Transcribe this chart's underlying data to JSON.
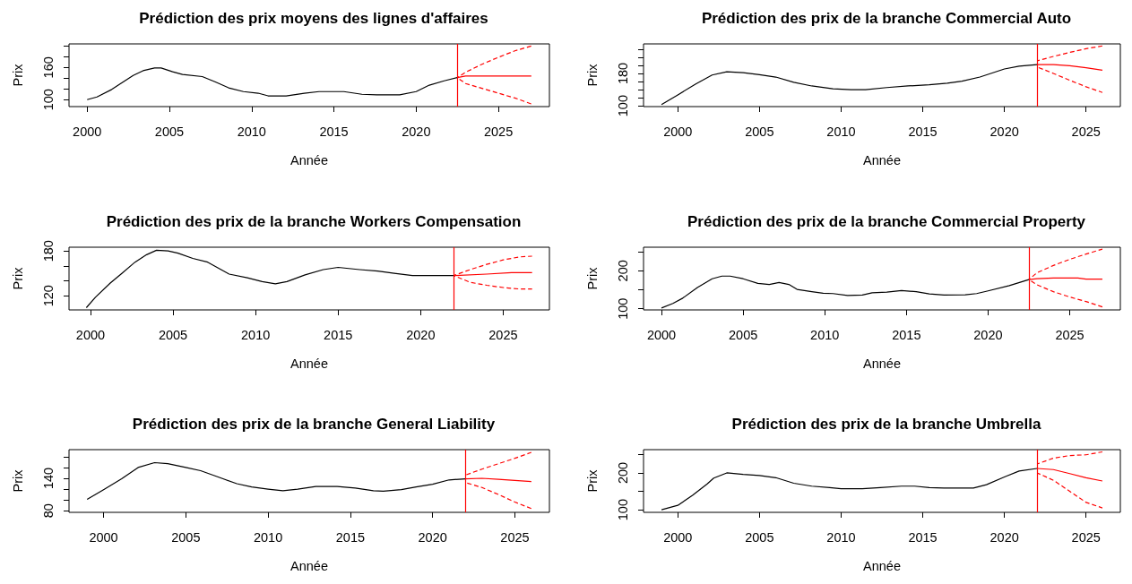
{
  "chart_data": [
    {
      "type": "line",
      "title": "Prédiction des prix moyens des lignes d'affaires",
      "xlabel": "Année",
      "ylabel": "Prix",
      "xlim": [
        1998.9,
        2028.1
      ],
      "xticks": [
        2000,
        2005,
        2010,
        2015,
        2020,
        2025
      ],
      "ylim": [
        87,
        204
      ],
      "yticks": [
        100,
        {
          "value": 120,
          "label": null
        },
        {
          "value": 140,
          "label": null
        },
        160,
        {
          "value": 180,
          "label": null
        },
        {
          "value": 200,
          "label": null
        }
      ],
      "ref_lines": [
        {
          "axis": "x",
          "value": 2022.5,
          "color": "#ff0000"
        }
      ],
      "series": [
        {
          "color": "#000000",
          "line_style": "solid",
          "x": [
            2000,
            2000.6,
            2001.5,
            2002,
            2002.8,
            2003.4,
            2004.1,
            2004.5,
            2005.2,
            2005.8,
            2007,
            2007.8,
            2008.6,
            2009.5,
            2010.4,
            2011,
            2012.1,
            2013.2,
            2014.1,
            2015.6,
            2016.7,
            2017.6,
            2019,
            2020,
            2020.8,
            2021.7,
            2022.5
          ],
          "values": [
            100,
            105,
            119,
            129,
            145,
            154,
            159,
            159,
            152,
            147,
            143,
            133,
            122,
            115,
            112,
            107,
            107,
            112,
            115,
            115,
            110,
            109,
            109,
            115,
            127,
            135,
            141
          ]
        },
        {
          "color": "#ff0000",
          "line_style": "solid",
          "x": [
            2022.5,
            2023,
            2025,
            2027
          ],
          "values": [
            141,
            144,
            144,
            144
          ]
        },
        {
          "color": "#ff0000",
          "line_style": "dashed",
          "x": [
            2022.5,
            2023,
            2024,
            2025,
            2026,
            2027
          ],
          "values": [
            141,
            151,
            166,
            179,
            191,
            200
          ]
        },
        {
          "color": "#ff0000",
          "line_style": "dashed",
          "x": [
            2022.5,
            2023,
            2024,
            2025,
            2026,
            2027
          ],
          "values": [
            141,
            130,
            121,
            112,
            103,
            92
          ]
        }
      ]
    },
    {
      "type": "line",
      "title": "Prédiction des prix de la branche Commercial Auto",
      "xlabel": "Année",
      "ylabel": "Prix",
      "xlim": [
        1997.9,
        2027.1
      ],
      "xticks": [
        2000,
        2005,
        2010,
        2015,
        2020,
        2025
      ],
      "ylim": [
        98,
        253
      ],
      "yticks": [
        100,
        {
          "value": 120,
          "label": null
        },
        {
          "value": 140,
          "label": null
        },
        {
          "value": 160,
          "label": null
        },
        180,
        {
          "value": 200,
          "label": null
        },
        {
          "value": 220,
          "label": null
        },
        {
          "value": 240,
          "label": null
        }
      ],
      "ref_lines": [
        {
          "axis": "x",
          "value": 2022,
          "color": "#ff0000"
        }
      ],
      "series": [
        {
          "color": "#000000",
          "line_style": "solid",
          "x": [
            1999,
            2000,
            2001.1,
            2002.1,
            2003,
            2004,
            2005,
            2006,
            2007.1,
            2008.2,
            2009.5,
            2010.6,
            2011.5,
            2012.8,
            2014.1,
            2015.4,
            2016.5,
            2017.4,
            2018.5,
            2020,
            2020.9,
            2022
          ],
          "values": [
            103,
            127,
            154,
            176,
            184,
            182,
            177,
            171,
            158,
            149,
            142,
            140,
            140,
            145,
            149,
            152,
            156,
            161,
            171,
            191,
            198,
            202
          ]
        },
        {
          "color": "#ff0000",
          "line_style": "solid",
          "x": [
            2022,
            2023,
            2024,
            2025,
            2026
          ],
          "values": [
            202,
            202,
            199,
            194,
            188
          ]
        },
        {
          "color": "#ff0000",
          "line_style": "dashed",
          "x": [
            2022,
            2023,
            2024,
            2025,
            2026
          ],
          "values": [
            211,
            222,
            232,
            241,
            248
          ]
        },
        {
          "color": "#ff0000",
          "line_style": "dashed",
          "x": [
            2022,
            2023,
            2024,
            2025,
            2026
          ],
          "values": [
            196,
            180,
            163,
            147,
            133
          ]
        }
      ]
    },
    {
      "type": "line",
      "title": "Prédiction des prix de la branche Workers Compensation",
      "xlabel": "Année",
      "ylabel": "Prix",
      "xlim": [
        1998.7,
        2027.8
      ],
      "xticks": [
        2000,
        2005,
        2010,
        2015,
        2020,
        2025
      ],
      "ylim": [
        101,
        185
      ],
      "yticks": [
        120,
        {
          "value": 140,
          "label": null
        },
        {
          "value": 160,
          "label": null
        },
        180
      ],
      "ref_lines": [
        {
          "axis": "x",
          "value": 2022,
          "color": "#ff0000"
        }
      ],
      "series": [
        {
          "color": "#000000",
          "line_style": "solid",
          "x": [
            1999.75,
            2000.3,
            2001.2,
            2001.9,
            2002.7,
            2003.4,
            2004,
            2004.7,
            2005.3,
            2006.2,
            2007.1,
            2008.4,
            2009.5,
            2010.4,
            2011.2,
            2011.9,
            2013,
            2014.1,
            2015,
            2016.3,
            2017.4,
            2018.4,
            2019.5,
            2022
          ],
          "values": [
            104,
            118,
            137,
            150,
            165,
            175,
            181,
            180,
            177,
            170,
            165,
            149,
            144,
            139,
            136,
            139,
            148,
            155,
            158,
            155,
            153,
            150,
            147,
            147
          ]
        },
        {
          "color": "#ff0000",
          "line_style": "solid",
          "x": [
            2022,
            2024,
            2025.5,
            2026.75
          ],
          "values": [
            147,
            149,
            151,
            151
          ]
        },
        {
          "color": "#ff0000",
          "line_style": "dashed",
          "x": [
            2022,
            2023,
            2024,
            2025,
            2026,
            2026.75
          ],
          "values": [
            147,
            155,
            162,
            168,
            172,
            173
          ]
        },
        {
          "color": "#ff0000",
          "line_style": "dashed",
          "x": [
            2022,
            2023,
            2024,
            2025,
            2026,
            2026.75
          ],
          "values": [
            147,
            138,
            134,
            131,
            129,
            129
          ]
        }
      ]
    },
    {
      "type": "line",
      "title": "Prédiction des prix de la branche Commercial Property",
      "xlabel": "Année",
      "ylabel": "Prix",
      "xlim": [
        1998.9,
        2028.1
      ],
      "xticks": [
        2000,
        2005,
        2010,
        2015,
        2020,
        2025
      ],
      "ylim": [
        97,
        262
      ],
      "yticks": [
        100,
        {
          "value": 150,
          "label": null
        },
        200,
        {
          "value": 250,
          "label": null
        }
      ],
      "ref_lines": [
        {
          "axis": "x",
          "value": 2022.5,
          "color": "#ff0000"
        }
      ],
      "series": [
        {
          "color": "#000000",
          "line_style": "solid",
          "x": [
            2000,
            2000.7,
            2001.3,
            2002.2,
            2003.1,
            2003.7,
            2004.2,
            2005,
            2005.9,
            2006.6,
            2007.2,
            2007.8,
            2008.3,
            2009.2,
            2009.9,
            2010.5,
            2011.4,
            2012.3,
            2012.9,
            2013.8,
            2014.7,
            2015.6,
            2016.4,
            2017.3,
            2018.6,
            2019.3,
            2020,
            2021.3,
            2022.5
          ],
          "values": [
            102,
            114,
            128,
            156,
            179,
            186,
            186,
            179,
            167,
            164,
            169,
            164,
            151,
            145,
            141,
            140,
            135,
            136,
            142,
            144,
            148,
            145,
            139,
            136,
            137,
            140,
            147,
            161,
            177
          ]
        },
        {
          "color": "#ff0000",
          "line_style": "solid",
          "x": [
            2022.5,
            2023,
            2024,
            2025.5,
            2026,
            2027
          ],
          "values": [
            177,
            179,
            181,
            181,
            178,
            178
          ]
        },
        {
          "color": "#ff0000",
          "line_style": "dashed",
          "x": [
            2022.5,
            2023,
            2024,
            2025,
            2026,
            2027
          ],
          "values": [
            177,
            195,
            214,
            230,
            244,
            257
          ]
        },
        {
          "color": "#ff0000",
          "line_style": "dashed",
          "x": [
            2022.5,
            2023,
            2024,
            2025,
            2026,
            2027
          ],
          "values": [
            177,
            163,
            145,
            131,
            119,
            105
          ]
        }
      ]
    },
    {
      "type": "line",
      "title": "Prédiction des prix de la branche General Liability",
      "xlabel": "Année",
      "ylabel": "Prix",
      "xlim": [
        1997.9,
        2027.1
      ],
      "xticks": [
        2000,
        2005,
        2010,
        2015,
        2020,
        2025
      ],
      "ylim": [
        77,
        193
      ],
      "yticks": [
        80,
        {
          "value": 100,
          "label": null
        },
        {
          "value": 120,
          "label": null
        },
        140,
        {
          "value": 160,
          "label": null
        },
        {
          "value": 180,
          "label": null
        }
      ],
      "ref_lines": [
        {
          "axis": "x",
          "value": 2022,
          "color": "#ff0000"
        }
      ],
      "series": [
        {
          "color": "#000000",
          "line_style": "solid",
          "x": [
            1999,
            2000,
            2001.1,
            2002.1,
            2003.1,
            2003.9,
            2005,
            2005.9,
            2007,
            2008.1,
            2009,
            2010,
            2010.9,
            2011.8,
            2012.9,
            2014.2,
            2015.3,
            2016.4,
            2017,
            2018.1,
            2019,
            2020,
            2021,
            2022
          ],
          "values": [
            101,
            119,
            139,
            160,
            169,
            167,
            160,
            154,
            142,
            130,
            124,
            120,
            117,
            120,
            125,
            125,
            122,
            117,
            116,
            119,
            124,
            129,
            137,
            139
          ]
        },
        {
          "color": "#ff0000",
          "line_style": "solid",
          "x": [
            2022,
            2023,
            2024,
            2025,
            2026
          ],
          "values": [
            139,
            140,
            138,
            136,
            134
          ]
        },
        {
          "color": "#ff0000",
          "line_style": "dashed",
          "x": [
            2022,
            2023,
            2024,
            2025,
            2026
          ],
          "values": [
            146,
            157,
            167,
            177,
            188
          ]
        },
        {
          "color": "#ff0000",
          "line_style": "dashed",
          "x": [
            2022,
            2023,
            2024,
            2025,
            2026
          ],
          "values": [
            132,
            123,
            110,
            96,
            84
          ]
        }
      ]
    },
    {
      "type": "line",
      "title": "Prédiction des prix de la branche Umbrella",
      "xlabel": "Année",
      "ylabel": "Prix",
      "xlim": [
        1997.9,
        2027.1
      ],
      "xticks": [
        2000,
        2005,
        2010,
        2015,
        2020,
        2025
      ],
      "ylim": [
        93,
        263
      ],
      "yticks": [
        100,
        {
          "value": 150,
          "label": null
        },
        200,
        {
          "value": 250,
          "label": null
        }
      ],
      "ref_lines": [
        {
          "axis": "x",
          "value": 2022,
          "color": "#ff0000"
        }
      ],
      "series": [
        {
          "color": "#000000",
          "line_style": "solid",
          "x": [
            1999,
            2000,
            2000.9,
            2001.8,
            2002.2,
            2003,
            2004,
            2005,
            2006,
            2007.1,
            2008.2,
            2009.3,
            2010,
            2011.3,
            2012.4,
            2013.7,
            2014.5,
            2015.4,
            2016.3,
            2018.1,
            2018.9,
            2020,
            2020.9,
            2022
          ],
          "values": [
            100,
            112,
            139,
            170,
            186,
            200,
            196,
            193,
            187,
            172,
            164,
            160,
            157,
            157,
            160,
            164,
            164,
            160,
            159,
            159,
            168,
            189,
            205,
            212
          ]
        },
        {
          "color": "#ff0000",
          "line_style": "solid",
          "x": [
            2022,
            2023,
            2024,
            2025,
            2026
          ],
          "values": [
            212,
            209,
            198,
            187,
            178
          ]
        },
        {
          "color": "#ff0000",
          "line_style": "dashed",
          "x": [
            2022,
            2023,
            2024,
            2025,
            2026
          ],
          "values": [
            224,
            240,
            247,
            249,
            257
          ]
        },
        {
          "color": "#ff0000",
          "line_style": "dashed",
          "x": [
            2022,
            2023,
            2024,
            2025,
            2026
          ],
          "values": [
            200,
            180,
            150,
            120,
            105
          ]
        }
      ]
    }
  ]
}
